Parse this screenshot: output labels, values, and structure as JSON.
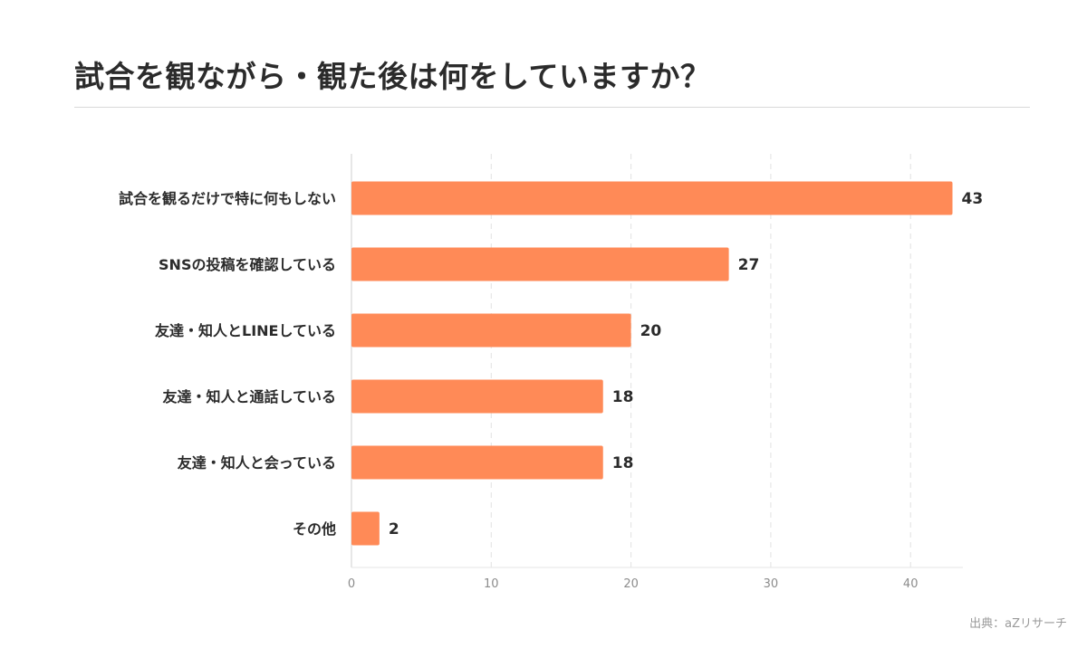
{
  "header": {
    "title": "試合を観ながら・観た後は何をしていますか？"
  },
  "footer": {
    "source": "出典：aZリサーチ"
  },
  "chart_data": {
    "type": "bar",
    "orientation": "horizontal",
    "categories": [
      "試合を観るだけで特に何もしない",
      "SNSの投稿を確認している",
      "友達・知人とLINEしている",
      "友達・知人と通話している",
      "友達・知人と会っている",
      "その他"
    ],
    "values": [
      43,
      27,
      20,
      18,
      18,
      2
    ],
    "xlim": [
      0,
      43.5
    ],
    "xticks": [
      0,
      10,
      20,
      30,
      40
    ],
    "grid": true,
    "bar_color": "#ff8a57"
  }
}
